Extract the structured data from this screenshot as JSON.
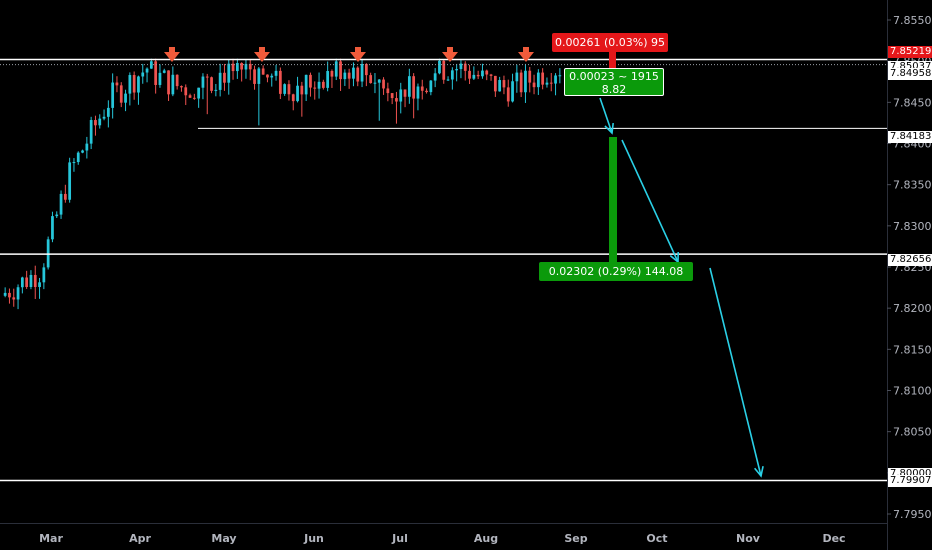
{
  "chart_data": {
    "type": "candlestick",
    "ylim": [
      7.7925,
      7.86
    ],
    "y_ticks": [
      "7.85500",
      "7.85000",
      "7.84500",
      "7.84000",
      "7.83500",
      "7.83000",
      "7.82500",
      "7.82000",
      "7.81500",
      "7.81000",
      "7.80500",
      "7.80000",
      "7.79500"
    ],
    "x_ticks": [
      "Mar",
      "Apr",
      "May",
      "Jun",
      "Jul",
      "Aug",
      "Sep",
      "Oct",
      "Nov",
      "Dec"
    ],
    "price_labels": {
      "current": "7.84958",
      "top_red": "7.85219",
      "support": "7.84183",
      "level_mid": "7.82656",
      "level_low": "7.79907",
      "hidden_top": "7.85037",
      "hidden_low": "7.80000"
    },
    "horizontal_levels": [
      7.8502,
      7.84183,
      7.82656,
      7.79907
    ],
    "measure_boxes": {
      "red": "0.00261 (0.03%) 95",
      "small_green_line1": "0.00023 ~ 1915",
      "small_green_line2": "8.82",
      "big_green": "0.02302 (0.29%) 144.08"
    },
    "colors": {
      "up": "#26c6da",
      "down": "#ef5350",
      "green": "#0b9a0b",
      "red": "#e4171a",
      "line": "#ffffff",
      "arrow": "#ef5b3b",
      "projection": "#2ad0e6"
    }
  }
}
